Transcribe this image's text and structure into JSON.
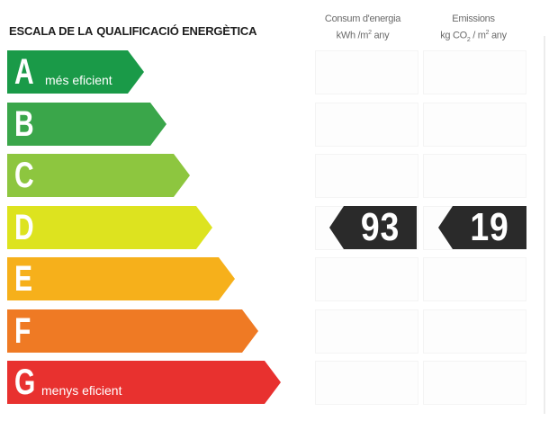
{
  "title": {
    "prefix": "ESCALA DE LA",
    "main": "QUALIFICACIÓ ENERGÈTICA"
  },
  "columns": {
    "consum": {
      "label": "Consum d'energia",
      "unit_a": "kWh /m",
      "unit_sup": "2",
      "unit_b": " any"
    },
    "emissions": {
      "label": "Emissions",
      "unit_a": "kg CO",
      "unit_sub": "2",
      "unit_c": " / m",
      "unit_sup": "2",
      "unit_b": " any"
    }
  },
  "ratings": [
    {
      "letter": "A",
      "color": "#1a9a48",
      "sublabel": "més eficient"
    },
    {
      "letter": "B",
      "color": "#3aa64a",
      "sublabel": ""
    },
    {
      "letter": "C",
      "color": "#8dc63f",
      "sublabel": ""
    },
    {
      "letter": "D",
      "color": "#dde31f",
      "sublabel": ""
    },
    {
      "letter": "E",
      "color": "#f6b01b",
      "sublabel": ""
    },
    {
      "letter": "F",
      "color": "#ef7a24",
      "sublabel": ""
    },
    {
      "letter": "G",
      "color": "#e8312f",
      "sublabel": "menys eficient"
    }
  ],
  "result": {
    "rating": "D",
    "consum_value": "93",
    "emissions_value": "19",
    "badge_color": "#2a2a2a"
  }
}
